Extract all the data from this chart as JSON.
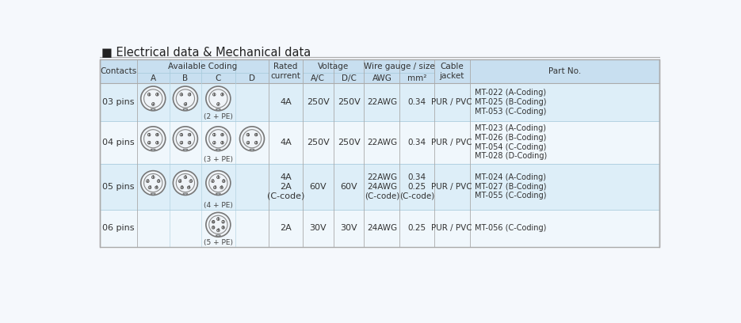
{
  "title": "■ Electrical data & Mechanical data",
  "title_color": "#1a5fa8",
  "background_color": "#f5f8fc",
  "table_bg": "#ffffff",
  "header_bg": "#c8dff0",
  "row_bg_alt": "#ddeef8",
  "row_bg_white": "#f0f7fc",
  "border_color": "#aaaaaa",
  "inner_line_color": "#aaccdd",
  "text_color": "#333333",
  "rows": [
    {
      "contacts": "03 pins",
      "rated_current": "4A",
      "voltage_ac": "250V",
      "voltage_dc": "250V",
      "awg": "22AWG",
      "mm2": "0.34",
      "cable_jacket": "PUR / PVC",
      "part_no": "MT-022 (A-Coding)\nMT-025 (B-Coding)\nMT-053 (C-Coding)",
      "has_A": true,
      "has_B": true,
      "has_C": true,
      "has_D": false,
      "c_label": "(2 + PE)",
      "num_pins": 3
    },
    {
      "contacts": "04 pins",
      "rated_current": "4A",
      "voltage_ac": "250V",
      "voltage_dc": "250V",
      "awg": "22AWG",
      "mm2": "0.34",
      "cable_jacket": "PUR / PVC",
      "part_no": "MT-023 (A-Coding)\nMT-026 (B-Coding)\nMT-054 (C-Coding)\nMT-028 (D-Coding)",
      "has_A": true,
      "has_B": true,
      "has_C": true,
      "has_D": true,
      "c_label": "(3 + PE)",
      "num_pins": 4
    },
    {
      "contacts": "05 pins",
      "rated_current": "4A\n2A\n(C-code)",
      "voltage_ac": "60V",
      "voltage_dc": "60V",
      "awg": "22AWG\n24AWG\n(C-code)",
      "mm2": "0.34\n0.25\n(C-code)",
      "cable_jacket": "PUR / PVC",
      "part_no": "MT-024 (A-Coding)\nMT-027 (B-Coding)\nMT-055 (C-Coding)",
      "has_A": true,
      "has_B": true,
      "has_C": true,
      "has_D": false,
      "c_label": "(4 + PE)",
      "num_pins": 5
    },
    {
      "contacts": "06 pins",
      "rated_current": "2A",
      "voltage_ac": "30V",
      "voltage_dc": "30V",
      "awg": "24AWG",
      "mm2": "0.25",
      "cable_jacket": "PUR / PVC",
      "part_no": "MT-056 (C-Coding)",
      "has_A": false,
      "has_B": false,
      "has_C": true,
      "has_D": false,
      "c_label": "(5 + PE)",
      "num_pins": 6
    }
  ]
}
